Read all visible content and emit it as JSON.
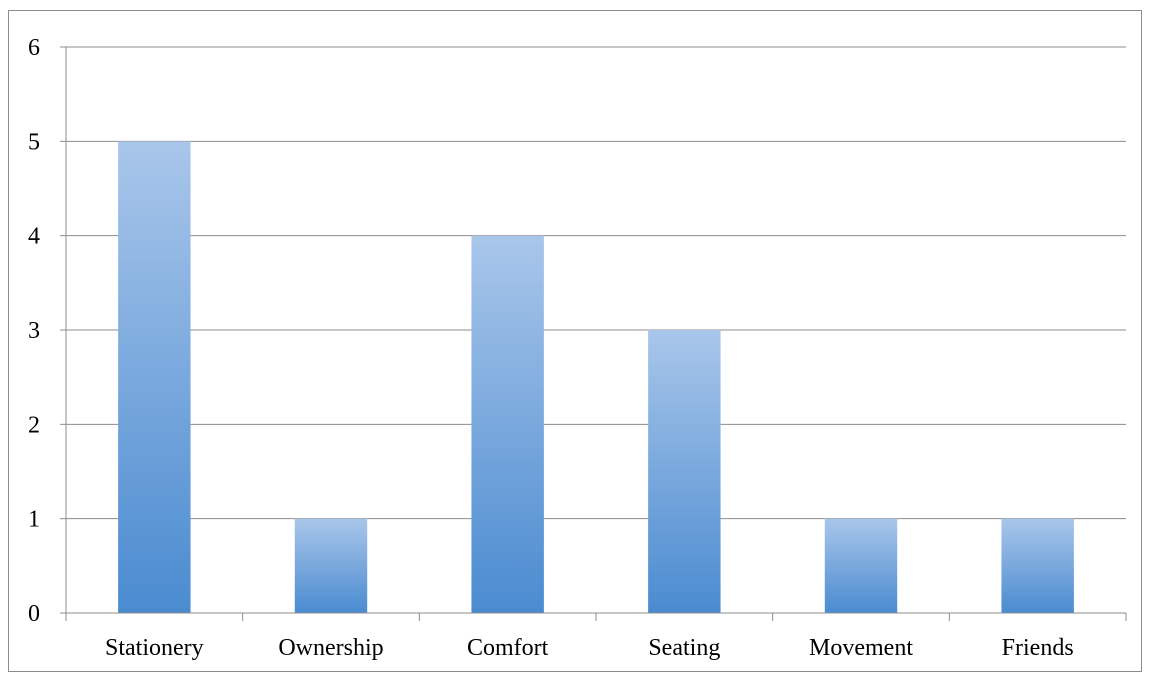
{
  "chart_data": {
    "type": "bar",
    "title": "",
    "xlabel": "",
    "ylabel": "",
    "categories": [
      "Stationery",
      "Ownership",
      "Comfort",
      "Seating",
      "Movement",
      "Friends"
    ],
    "values": [
      5,
      1,
      4,
      3,
      1,
      1
    ],
    "ylim": [
      0,
      6
    ],
    "yticks": [
      "0",
      "1",
      "2",
      "3",
      "4",
      "5",
      "6"
    ],
    "grid": true,
    "legend": "none",
    "colors": {
      "bar_top": "#a9c6ea",
      "bar_bottom": "#4a8bd0",
      "gridline": "#8c8c8c",
      "axis": "#8c8c8c"
    }
  }
}
